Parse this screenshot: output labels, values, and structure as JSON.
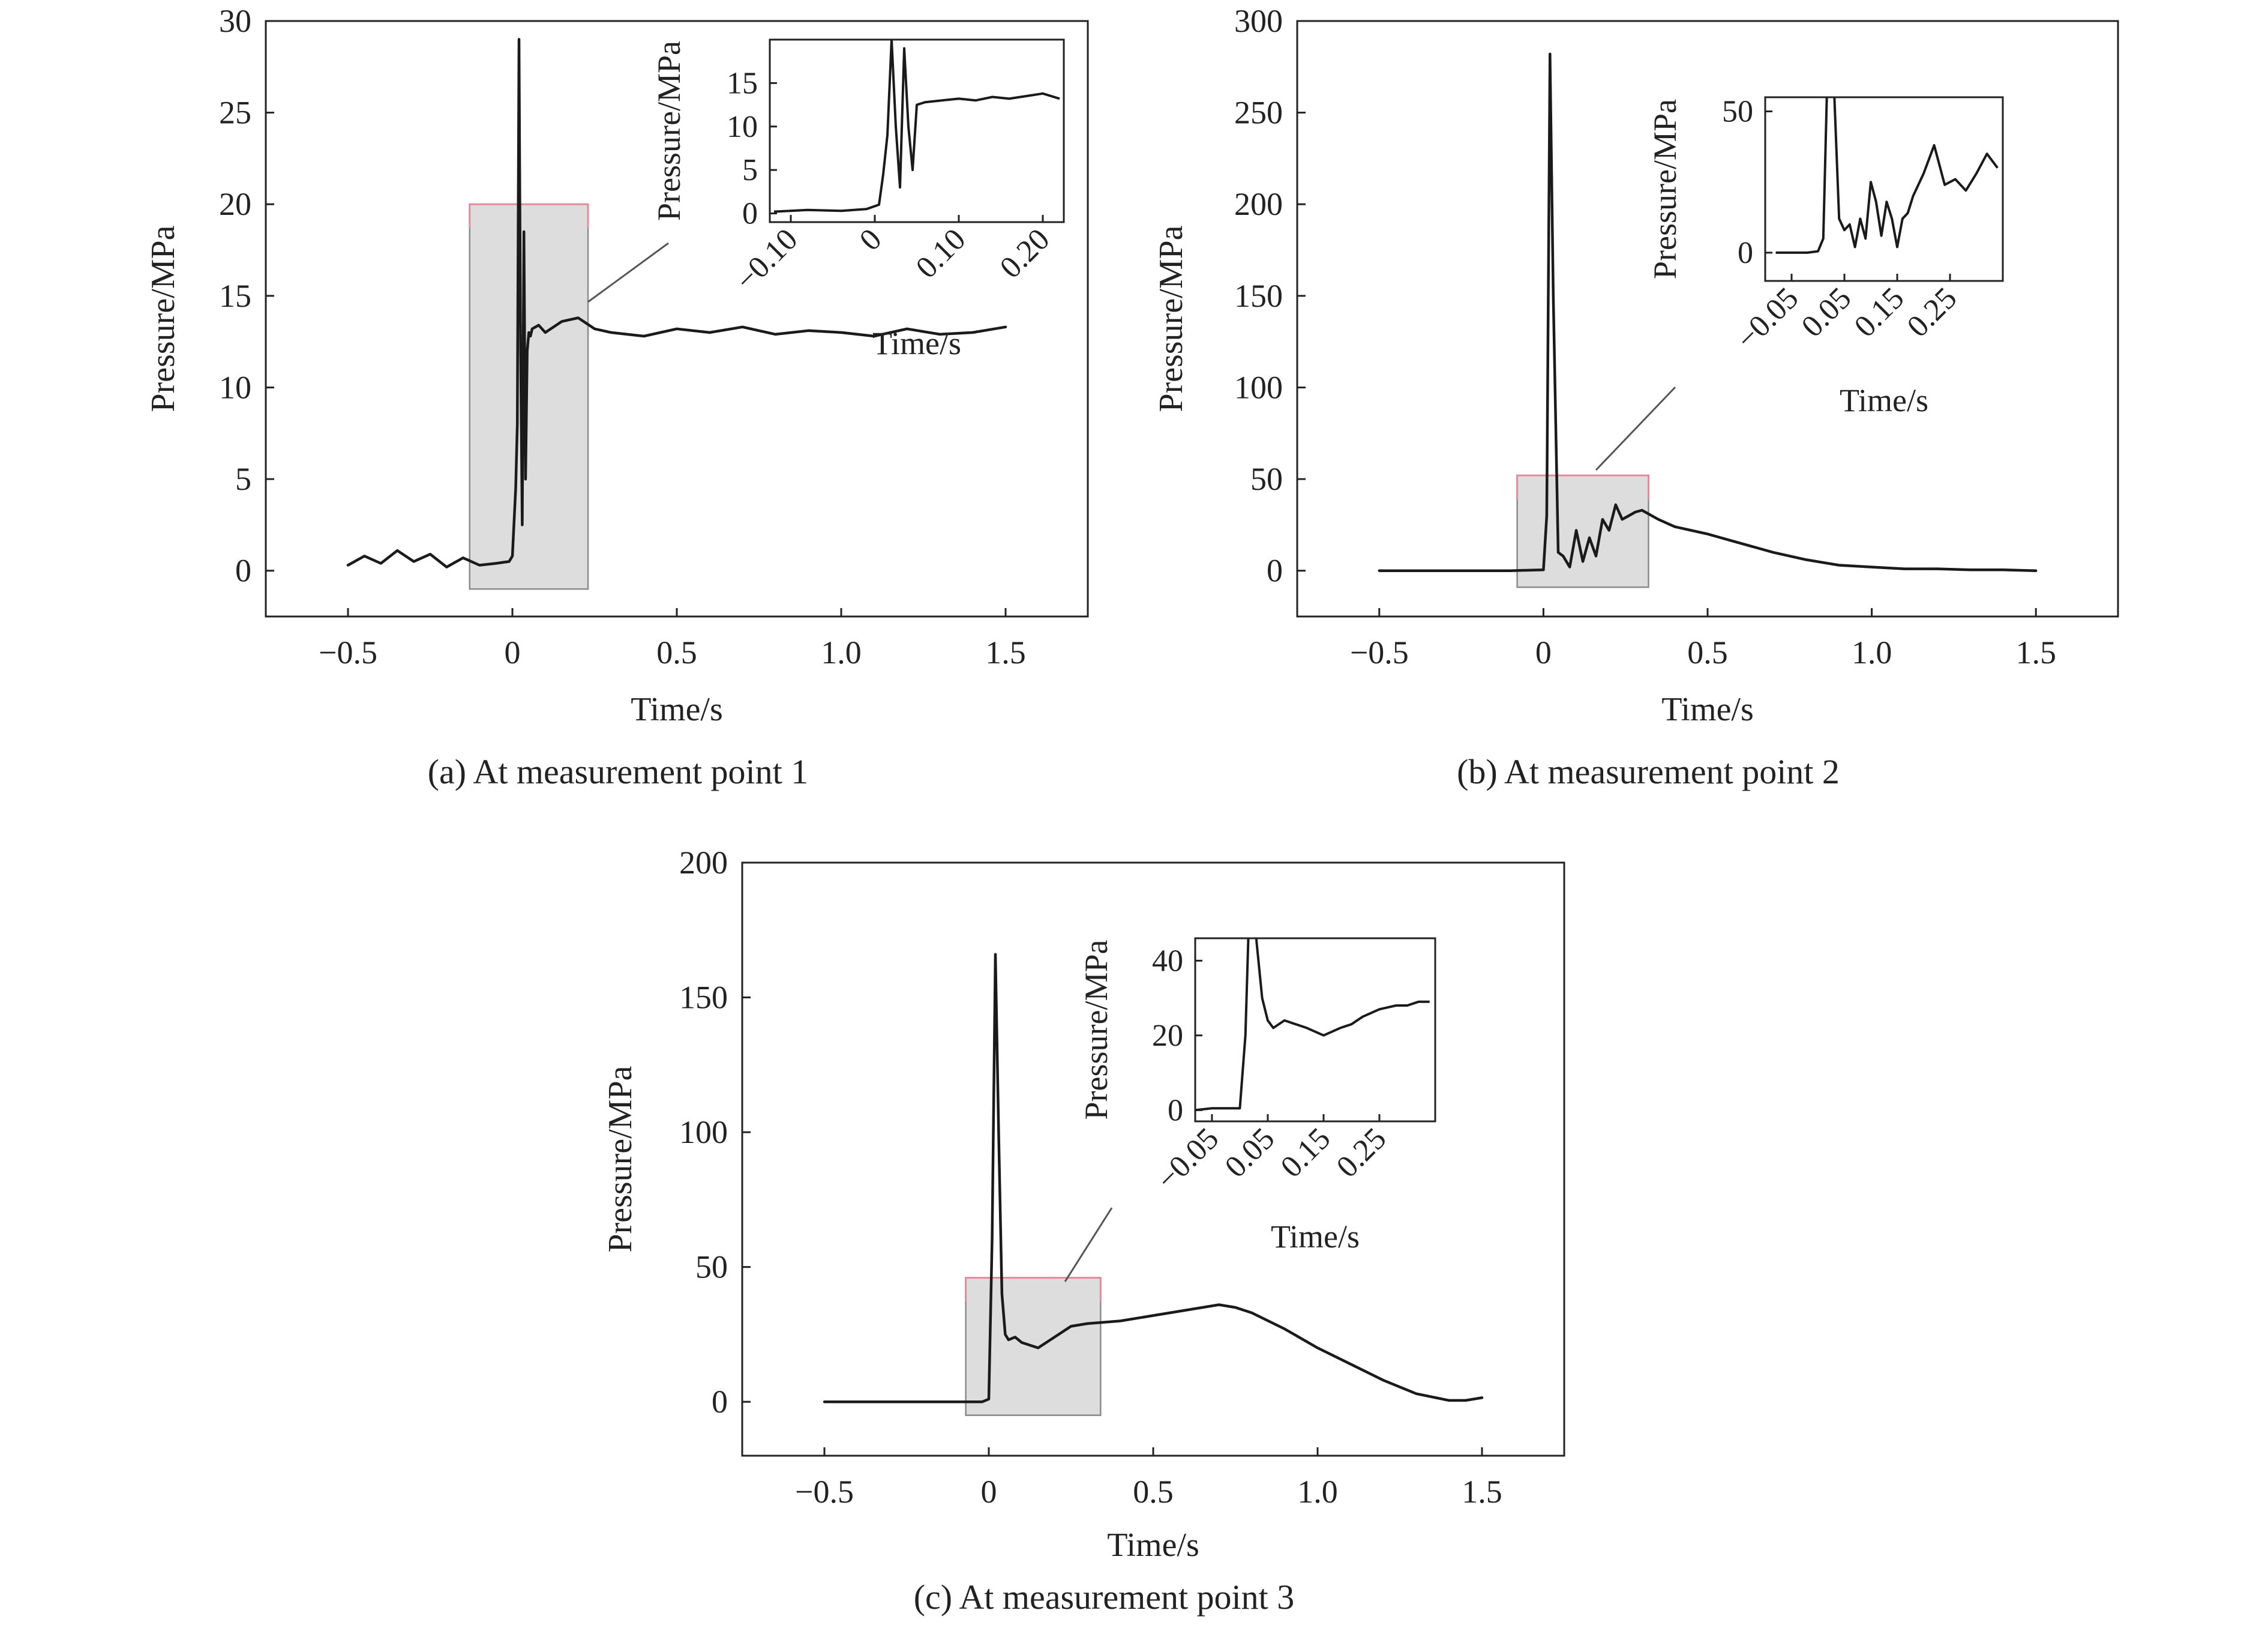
{
  "chart_data": [
    {
      "type": "line",
      "caption": "(a) At measurement point 1",
      "xlabel": "Time/s",
      "ylabel": "Pressure/MPa",
      "xlim": [
        -0.75,
        1.75
      ],
      "ylim": [
        -2.5,
        30
      ],
      "xticks": [
        -0.5,
        0,
        0.5,
        1.0,
        1.5
      ],
      "xtick_labels": [
        "−0.5",
        "0",
        "0.5",
        "1.0",
        "1.5"
      ],
      "yticks": [
        0,
        5,
        10,
        15,
        20,
        25,
        30
      ],
      "ytick_labels": [
        "0",
        "5",
        "10",
        "15",
        "20",
        "25",
        "30"
      ],
      "zoom_region": {
        "x": [
          -0.13,
          0.23
        ],
        "y": [
          -1,
          20
        ]
      },
      "series": [
        {
          "x": [
            -0.5,
            -0.45,
            -0.4,
            -0.35,
            -0.3,
            -0.25,
            -0.2,
            -0.15,
            -0.1,
            -0.05,
            -0.01,
            0.0,
            0.01,
            0.015,
            0.02,
            0.025,
            0.03,
            0.035,
            0.04,
            0.045,
            0.05,
            0.055,
            0.06,
            0.08,
            0.1,
            0.15,
            0.2,
            0.25,
            0.3,
            0.4,
            0.5,
            0.6,
            0.7,
            0.8,
            0.9,
            1.0,
            1.1,
            1.2,
            1.3,
            1.4,
            1.5
          ],
          "y": [
            0.3,
            0.8,
            0.4,
            1.1,
            0.5,
            0.9,
            0.2,
            0.7,
            0.3,
            0.4,
            0.5,
            0.8,
            4.5,
            8.0,
            29.0,
            12.0,
            2.5,
            18.5,
            5.0,
            12.0,
            13.0,
            12.8,
            13.2,
            13.4,
            13.0,
            13.6,
            13.8,
            13.2,
            13.0,
            12.8,
            13.2,
            13.0,
            13.3,
            12.9,
            13.1,
            13.0,
            12.8,
            13.2,
            12.9,
            13.0,
            13.3
          ]
        }
      ],
      "inset": {
        "xlabel": "Time/s",
        "ylabel": "Pressure/MPa",
        "xlim": [
          -0.125,
          0.225
        ],
        "ylim": [
          -1,
          20
        ],
        "xticks": [
          -0.1,
          0,
          0.1,
          0.2
        ],
        "xtick_labels": [
          "−0.10",
          "0",
          "0.10",
          "0.20"
        ],
        "yticks": [
          0,
          5,
          10,
          15
        ],
        "ytick_labels": [
          "0",
          "5",
          "10",
          "15"
        ],
        "series": [
          {
            "x": [
              -0.12,
              -0.08,
              -0.04,
              -0.01,
              0.005,
              0.01,
              0.015,
              0.02,
              0.025,
              0.03,
              0.035,
              0.04,
              0.045,
              0.05,
              0.06,
              0.08,
              0.1,
              0.12,
              0.14,
              0.16,
              0.18,
              0.2,
              0.22
            ],
            "y": [
              0.2,
              0.4,
              0.3,
              0.5,
              1.0,
              4.5,
              9.0,
              20.0,
              10.0,
              3.0,
              19.0,
              10.0,
              5.0,
              12.5,
              12.8,
              13.0,
              13.2,
              13.0,
              13.4,
              13.2,
              13.5,
              13.8,
              13.2
            ]
          }
        ]
      }
    },
    {
      "type": "line",
      "caption": "(b) At measurement point 2",
      "xlabel": "Time/s",
      "ylabel": "Pressure/MPa",
      "xlim": [
        -0.75,
        1.75
      ],
      "ylim": [
        -25,
        300
      ],
      "xticks": [
        -0.5,
        0,
        0.5,
        1.0,
        1.5
      ],
      "xtick_labels": [
        "−0.5",
        "0",
        "0.5",
        "1.0",
        "1.5"
      ],
      "yticks": [
        0,
        50,
        100,
        150,
        200,
        250,
        300
      ],
      "ytick_labels": [
        "0",
        "50",
        "100",
        "150",
        "200",
        "250",
        "300"
      ],
      "zoom_region": {
        "x": [
          -0.08,
          0.32
        ],
        "y": [
          -9,
          52
        ]
      },
      "series": [
        {
          "x": [
            -0.5,
            -0.3,
            -0.1,
            0.0,
            0.01,
            0.02,
            0.03,
            0.045,
            0.06,
            0.08,
            0.1,
            0.12,
            0.14,
            0.16,
            0.18,
            0.2,
            0.22,
            0.24,
            0.26,
            0.28,
            0.3,
            0.35,
            0.4,
            0.45,
            0.5,
            0.6,
            0.7,
            0.8,
            0.9,
            1.0,
            1.1,
            1.2,
            1.3,
            1.4,
            1.5
          ],
          "y": [
            0,
            0,
            0,
            0.5,
            30,
            282,
            150,
            10,
            8,
            2,
            22,
            5,
            18,
            8,
            28,
            22,
            36,
            28,
            30,
            32,
            33,
            28,
            24,
            22,
            20,
            15,
            10,
            6,
            3,
            2,
            1,
            1,
            0.5,
            0.5,
            0
          ]
        }
      ],
      "inset": {
        "xlabel": "Time/s",
        "ylabel": "Pressure/MPa",
        "xlim": [
          -0.1,
          0.35
        ],
        "ylim": [
          -10,
          55
        ],
        "xticks": [
          -0.05,
          0.05,
          0.15,
          0.25
        ],
        "xtick_labels": [
          "−0.05",
          "0.05",
          "0.15",
          "0.25"
        ],
        "yticks": [
          0,
          50
        ],
        "ytick_labels": [
          "0",
          "50"
        ],
        "series": [
          {
            "x": [
              -0.08,
              -0.05,
              -0.02,
              0.0,
              0.01,
              0.02,
              0.03,
              0.04,
              0.05,
              0.06,
              0.07,
              0.08,
              0.09,
              0.1,
              0.11,
              0.12,
              0.13,
              0.14,
              0.15,
              0.16,
              0.17,
              0.18,
              0.2,
              0.22,
              0.24,
              0.26,
              0.28,
              0.3,
              0.32,
              0.34
            ],
            "y": [
              0,
              0,
              0,
              0.5,
              5,
              80,
              60,
              12,
              8,
              10,
              2,
              12,
              5,
              25,
              18,
              6,
              18,
              12,
              2,
              12,
              14,
              20,
              28,
              38,
              24,
              26,
              22,
              28,
              35,
              30
            ]
          }
        ]
      }
    },
    {
      "type": "line",
      "caption": "(c) At measurement point 3",
      "xlabel": "Time/s",
      "ylabel": "Pressure/MPa",
      "xlim": [
        -0.75,
        1.75
      ],
      "ylim": [
        -20,
        200
      ],
      "xticks": [
        -0.5,
        0,
        0.5,
        1.0,
        1.5
      ],
      "xtick_labels": [
        "−0.5",
        "0",
        "0.5",
        "1.0",
        "1.5"
      ],
      "yticks": [
        0,
        50,
        100,
        150,
        200
      ],
      "ytick_labels": [
        "0",
        "50",
        "100",
        "150",
        "200"
      ],
      "zoom_region": {
        "x": [
          -0.07,
          0.34
        ],
        "y": [
          -5,
          46
        ]
      },
      "series": [
        {
          "x": [
            -0.5,
            -0.3,
            -0.1,
            -0.02,
            0.0,
            0.01,
            0.02,
            0.03,
            0.04,
            0.05,
            0.06,
            0.08,
            0.1,
            0.15,
            0.2,
            0.25,
            0.3,
            0.4,
            0.5,
            0.6,
            0.7,
            0.75,
            0.8,
            0.9,
            1.0,
            1.1,
            1.2,
            1.3,
            1.4,
            1.45,
            1.5
          ],
          "y": [
            0,
            0,
            0,
            0,
            1,
            60,
            166,
            100,
            40,
            25,
            23,
            24,
            22,
            20,
            24,
            28,
            29,
            30,
            32,
            34,
            36,
            35,
            33,
            27,
            20,
            14,
            8,
            3,
            0.5,
            0.5,
            1.5
          ]
        }
      ],
      "inset": {
        "xlabel": "Time/s",
        "ylabel": "Pressure/MPa",
        "xlim": [
          -0.08,
          0.35
        ],
        "ylim": [
          -3,
          46
        ],
        "xticks": [
          -0.05,
          0.05,
          0.15,
          0.25
        ],
        "xtick_labels": [
          "−0.05",
          "0.05",
          "0.15",
          "0.25"
        ],
        "yticks": [
          0,
          20,
          40
        ],
        "ytick_labels": [
          "0",
          "20",
          "40"
        ],
        "series": [
          {
            "x": [
              -0.08,
              -0.05,
              -0.02,
              0.0,
              0.01,
              0.02,
              0.03,
              0.04,
              0.05,
              0.06,
              0.08,
              0.1,
              0.12,
              0.15,
              0.18,
              0.2,
              0.22,
              0.25,
              0.28,
              0.3,
              0.32,
              0.34
            ],
            "y": [
              0,
              0.5,
              0.5,
              0.5,
              20,
              70,
              45,
              30,
              24,
              22,
              24,
              23,
              22,
              20,
              22,
              23,
              25,
              27,
              28,
              28,
              29,
              29
            ]
          }
        ]
      }
    }
  ]
}
